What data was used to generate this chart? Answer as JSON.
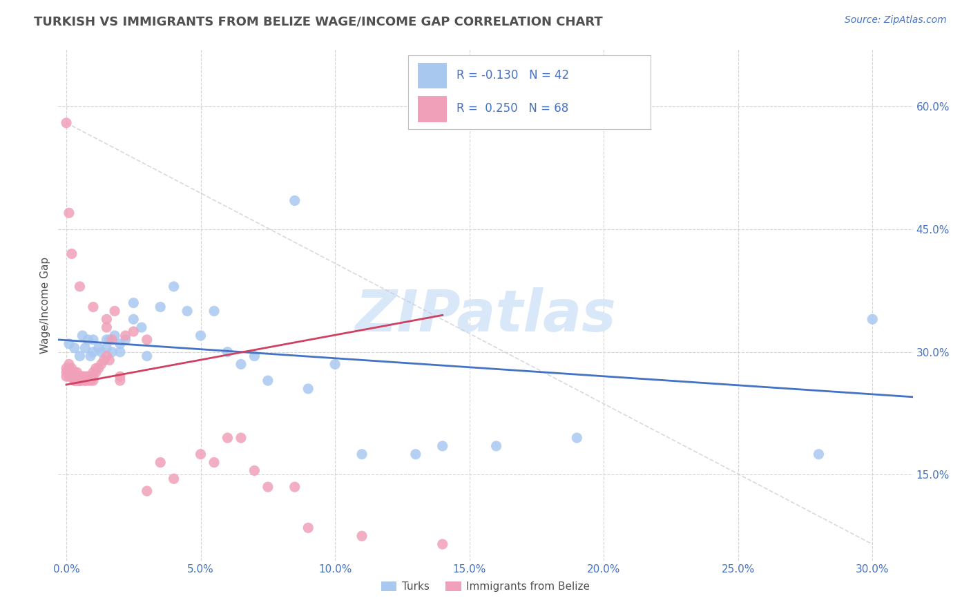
{
  "title": "TURKISH VS IMMIGRANTS FROM BELIZE WAGE/INCOME GAP CORRELATION CHART",
  "source": "Source: ZipAtlas.com",
  "ylabel": "Wage/Income Gap",
  "watermark": "ZIPatlas",
  "x_tick_vals": [
    0.0,
    0.05,
    0.1,
    0.15,
    0.2,
    0.25,
    0.3
  ],
  "y_tick_vals": [
    0.15,
    0.3,
    0.45,
    0.6
  ],
  "xlim": [
    -0.003,
    0.315
  ],
  "ylim": [
    0.045,
    0.67
  ],
  "blue_scatter_x": [
    0.001,
    0.003,
    0.005,
    0.006,
    0.007,
    0.008,
    0.009,
    0.01,
    0.01,
    0.012,
    0.013,
    0.015,
    0.015,
    0.016,
    0.017,
    0.018,
    0.02,
    0.02,
    0.022,
    0.025,
    0.025,
    0.028,
    0.03,
    0.035,
    0.04,
    0.045,
    0.05,
    0.055,
    0.06,
    0.065,
    0.07,
    0.075,
    0.085,
    0.09,
    0.1,
    0.11,
    0.13,
    0.14,
    0.16,
    0.19,
    0.28,
    0.3
  ],
  "blue_scatter_y": [
    0.31,
    0.305,
    0.295,
    0.32,
    0.305,
    0.315,
    0.295,
    0.3,
    0.315,
    0.305,
    0.3,
    0.315,
    0.305,
    0.315,
    0.3,
    0.32,
    0.31,
    0.3,
    0.315,
    0.34,
    0.36,
    0.33,
    0.295,
    0.355,
    0.38,
    0.35,
    0.32,
    0.35,
    0.3,
    0.285,
    0.295,
    0.265,
    0.485,
    0.255,
    0.285,
    0.175,
    0.175,
    0.185,
    0.185,
    0.195,
    0.175,
    0.34
  ],
  "pink_scatter_x": [
    0.0,
    0.0,
    0.0,
    0.001,
    0.001,
    0.001,
    0.001,
    0.002,
    0.002,
    0.002,
    0.002,
    0.002,
    0.003,
    0.003,
    0.003,
    0.003,
    0.003,
    0.004,
    0.004,
    0.004,
    0.004,
    0.005,
    0.005,
    0.005,
    0.005,
    0.005,
    0.006,
    0.006,
    0.006,
    0.007,
    0.007,
    0.007,
    0.008,
    0.008,
    0.008,
    0.009,
    0.009,
    0.01,
    0.01,
    0.01,
    0.011,
    0.011,
    0.012,
    0.013,
    0.014,
    0.015,
    0.015,
    0.016,
    0.017,
    0.018,
    0.02,
    0.02,
    0.022,
    0.025,
    0.03,
    0.03,
    0.035,
    0.04,
    0.05,
    0.055,
    0.06,
    0.065,
    0.07,
    0.075,
    0.085,
    0.09,
    0.11,
    0.14
  ],
  "pink_scatter_y": [
    0.27,
    0.275,
    0.28,
    0.27,
    0.275,
    0.28,
    0.285,
    0.27,
    0.275,
    0.28,
    0.27,
    0.275,
    0.265,
    0.27,
    0.275,
    0.265,
    0.275,
    0.265,
    0.27,
    0.275,
    0.265,
    0.265,
    0.27,
    0.265,
    0.27,
    0.265,
    0.27,
    0.265,
    0.27,
    0.265,
    0.27,
    0.265,
    0.27,
    0.265,
    0.27,
    0.27,
    0.265,
    0.265,
    0.27,
    0.275,
    0.275,
    0.28,
    0.28,
    0.285,
    0.29,
    0.295,
    0.33,
    0.29,
    0.315,
    0.35,
    0.265,
    0.27,
    0.32,
    0.325,
    0.315,
    0.13,
    0.165,
    0.145,
    0.175,
    0.165,
    0.195,
    0.195,
    0.155,
    0.135,
    0.135,
    0.085,
    0.075,
    0.065
  ],
  "pink_extra_high_x": [
    0.0,
    0.001,
    0.002,
    0.005,
    0.01,
    0.015
  ],
  "pink_extra_high_y": [
    0.58,
    0.47,
    0.42,
    0.38,
    0.355,
    0.34
  ],
  "blue_line_x": [
    -0.003,
    0.315
  ],
  "blue_line_y": [
    0.315,
    0.245
  ],
  "pink_line_x": [
    0.0,
    0.14
  ],
  "pink_line_y": [
    0.26,
    0.345
  ],
  "pink_dashed_line_x": [
    0.0,
    0.3
  ],
  "pink_dashed_line_y": [
    0.58,
    0.065
  ],
  "blue_color": "#a8c8f0",
  "pink_color": "#f0a0b8",
  "blue_line_color": "#4472c4",
  "pink_line_color": "#d04060",
  "pink_dash_color": "#c8c8d8",
  "grid_color": "#d0d0d0",
  "title_color": "#505050",
  "source_color": "#4472c4",
  "watermark_color": "#d8e8f8",
  "tick_label_color": "#4472c4",
  "background_color": "#ffffff",
  "legend_blue_r": "-0.130",
  "legend_blue_n": "42",
  "legend_pink_r": "0.250",
  "legend_pink_n": "68"
}
